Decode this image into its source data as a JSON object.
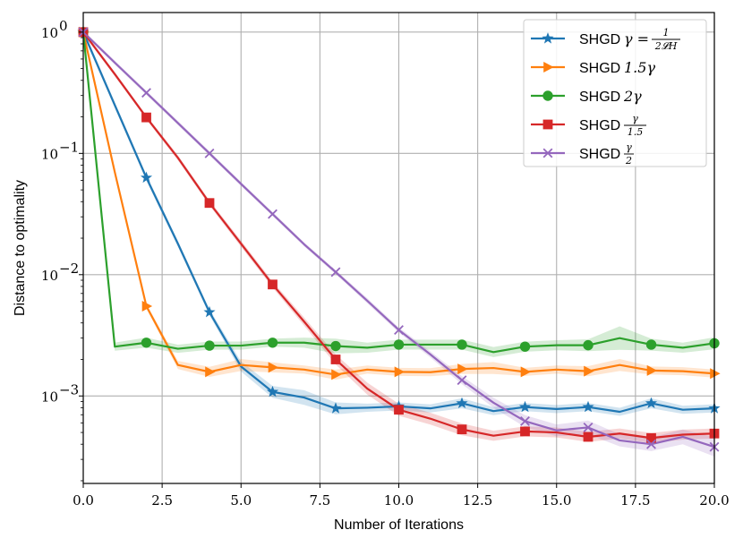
{
  "chart_data": {
    "type": "line",
    "xlabel": "Number of Iterations",
    "ylabel": "Distance to optimality",
    "xlim": [
      0,
      20
    ],
    "ylim": [
      0.00019,
      1.45
    ],
    "yscale": "log",
    "grid": true,
    "legend_position": "top-right",
    "x_ticks": [
      {
        "value": 0,
        "label": "0.0"
      },
      {
        "value": 2.5,
        "label": "2.5"
      },
      {
        "value": 5,
        "label": "5.0"
      },
      {
        "value": 7.5,
        "label": "7.5"
      },
      {
        "value": 10,
        "label": "10.0"
      },
      {
        "value": 12.5,
        "label": "12.5"
      },
      {
        "value": 15,
        "label": "15.0"
      },
      {
        "value": 17.5,
        "label": "17.5"
      },
      {
        "value": 20,
        "label": "20.0"
      }
    ],
    "y_ticks": [
      {
        "value": 1,
        "base": "10",
        "exp": "0"
      },
      {
        "value": 0.1,
        "base": "10",
        "exp": "−1"
      },
      {
        "value": 0.01,
        "base": "10",
        "exp": "−2"
      },
      {
        "value": 0.001,
        "base": "10",
        "exp": "−3"
      }
    ],
    "series": [
      {
        "name": "SHGD γ = 1/(2𝓛_H)",
        "legend": {
          "prefix": "SHGD",
          "math": "γ =",
          "frac_num": "1",
          "frac_den": "2𝓛H"
        },
        "color": "#1f77b4",
        "marker": "star",
        "x": [
          0,
          1,
          2,
          3,
          4,
          5,
          6,
          7,
          8,
          9,
          10,
          11,
          12,
          13,
          14,
          15,
          16,
          17,
          18,
          19,
          20
        ],
        "values": [
          1.0,
          0.25,
          0.063,
          0.018,
          0.0049,
          0.00175,
          0.00108,
          0.00097,
          0.00079,
          0.0008,
          0.00082,
          0.00079,
          0.00087,
          0.00075,
          0.00081,
          0.00078,
          0.00081,
          0.00074,
          0.00087,
          0.00077,
          0.00079
        ],
        "band": [
          0.06,
          0.06,
          0.06,
          0.06,
          0.06,
          0.1,
          0.12,
          0.15,
          0.12,
          0.08,
          0.08,
          0.08,
          0.1,
          0.08,
          0.08,
          0.08,
          0.08,
          0.08,
          0.1,
          0.08,
          0.08
        ]
      },
      {
        "name": "SHGD 1.5γ",
        "legend": {
          "prefix": "SHGD",
          "math": "1.5γ"
        },
        "color": "#ff7f0e",
        "marker": "triangle-right",
        "x": [
          0,
          1,
          2,
          3,
          4,
          5,
          6,
          7,
          8,
          9,
          10,
          11,
          12,
          13,
          14,
          15,
          16,
          17,
          18,
          19,
          20
        ],
        "values": [
          1.0,
          0.07,
          0.0055,
          0.0018,
          0.00158,
          0.0018,
          0.00172,
          0.00165,
          0.0015,
          0.00165,
          0.00158,
          0.00157,
          0.00167,
          0.0017,
          0.00158,
          0.00165,
          0.0016,
          0.0018,
          0.00162,
          0.0016,
          0.00153
        ],
        "band": [
          0.05,
          0.05,
          0.05,
          0.08,
          0.1,
          0.12,
          0.1,
          0.08,
          0.1,
          0.08,
          0.08,
          0.08,
          0.1,
          0.12,
          0.08,
          0.08,
          0.1,
          0.12,
          0.08,
          0.08,
          0.08
        ]
      },
      {
        "name": "SHGD 2γ",
        "legend": {
          "prefix": "SHGD",
          "math": "2γ"
        },
        "color": "#2ca02c",
        "marker": "circle",
        "x": [
          0,
          1,
          2,
          3,
          4,
          5,
          6,
          7,
          8,
          9,
          10,
          11,
          12,
          13,
          14,
          15,
          16,
          17,
          18,
          19,
          20
        ],
        "values": [
          1.0,
          0.00255,
          0.00275,
          0.00245,
          0.0026,
          0.0026,
          0.00275,
          0.00275,
          0.00258,
          0.0025,
          0.00265,
          0.00265,
          0.00265,
          0.0023,
          0.00255,
          0.00262,
          0.00262,
          0.003,
          0.00265,
          0.0025,
          0.00272
        ],
        "band": [
          0.05,
          0.08,
          0.1,
          0.08,
          0.08,
          0.08,
          0.08,
          0.1,
          0.15,
          0.1,
          0.1,
          0.1,
          0.1,
          0.1,
          0.1,
          0.1,
          0.12,
          0.25,
          0.12,
          0.1,
          0.12
        ]
      },
      {
        "name": "SHGD γ/1.5",
        "legend": {
          "prefix": "SHGD",
          "frac_num": "γ",
          "frac_den": "1.5"
        },
        "color": "#d62728",
        "marker": "square",
        "x": [
          0,
          1,
          2,
          3,
          4,
          5,
          6,
          7,
          8,
          9,
          10,
          11,
          12,
          13,
          14,
          15,
          16,
          17,
          18,
          19,
          20
        ],
        "values": [
          1.0,
          0.45,
          0.198,
          0.092,
          0.039,
          0.018,
          0.0083,
          0.0041,
          0.002,
          0.00115,
          0.00077,
          0.00065,
          0.00053,
          0.00047,
          0.00051,
          0.0005,
          0.00046,
          0.00049,
          0.00045,
          0.00048,
          0.00049
        ],
        "band": [
          0.04,
          0.04,
          0.04,
          0.05,
          0.05,
          0.06,
          0.06,
          0.08,
          0.1,
          0.12,
          0.12,
          0.12,
          0.12,
          0.1,
          0.1,
          0.1,
          0.1,
          0.1,
          0.1,
          0.1,
          0.1
        ]
      },
      {
        "name": "SHGD γ/2",
        "legend": {
          "prefix": "SHGD",
          "frac_num": "γ",
          "frac_den": "2"
        },
        "color": "#9467bd",
        "marker": "x",
        "x": [
          0,
          1,
          2,
          3,
          4,
          5,
          6,
          7,
          8,
          9,
          10,
          11,
          12,
          13,
          14,
          15,
          16,
          17,
          18,
          19,
          20
        ],
        "values": [
          1.0,
          0.56,
          0.316,
          0.178,
          0.1,
          0.056,
          0.0316,
          0.0178,
          0.0105,
          0.0061,
          0.0035,
          0.0022,
          0.00135,
          0.00088,
          0.00062,
          0.00052,
          0.00055,
          0.00043,
          0.0004,
          0.00046,
          0.00038
        ],
        "band": [
          0.04,
          0.04,
          0.04,
          0.04,
          0.04,
          0.04,
          0.04,
          0.04,
          0.04,
          0.05,
          0.05,
          0.06,
          0.08,
          0.1,
          0.12,
          0.12,
          0.14,
          0.12,
          0.14,
          0.15,
          0.2
        ]
      }
    ]
  }
}
